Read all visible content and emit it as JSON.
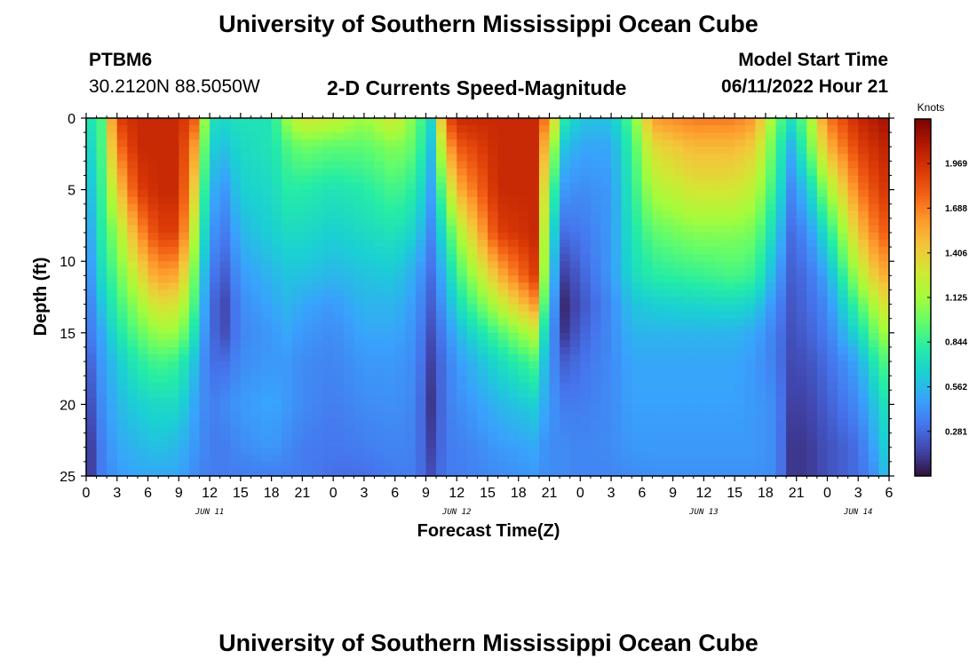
{
  "header": {
    "title": "University of Southern Mississippi Ocean Cube",
    "station": "PTBM6",
    "coords": "30.2120N  88.5050W",
    "subtitle": "2-D Currents Speed-Magnitude",
    "model_label": "Model Start Time",
    "model_time": "06/11/2022 Hour 21"
  },
  "footer": {
    "title": "University of Southern Mississippi Ocean Cube"
  },
  "chart_data": {
    "type": "heatmap",
    "title": "2-D Currents Speed-Magnitude",
    "xlabel": "Forecast Time(Z)",
    "ylabel": "Depth (ft)",
    "x_range_hours": [
      0,
      78
    ],
    "x_tick_labels": [
      "0",
      "3",
      "6",
      "9",
      "12",
      "15",
      "18",
      "21",
      "0",
      "3",
      "6",
      "9",
      "12",
      "15",
      "18",
      "21",
      "0",
      "3",
      "6",
      "9",
      "12",
      "15",
      "18",
      "21",
      "0",
      "3",
      "6"
    ],
    "date_labels": [
      {
        "label": "JUN 11",
        "at_hour": 12
      },
      {
        "label": "JUN 12",
        "at_hour": 36
      },
      {
        "label": "JUN 13",
        "at_hour": 60
      },
      {
        "label": "JUN 14",
        "at_hour": 75
      }
    ],
    "y_range": [
      0,
      25
    ],
    "y_ticks": [
      "0",
      "5",
      "10",
      "15",
      "20",
      "25"
    ],
    "colorbar": {
      "unit": "Knots",
      "min": 0,
      "max": 2.25,
      "ticks": [
        "1.969",
        "1.688",
        "1.406",
        "1.125",
        "0.844",
        "0.562",
        "0.281"
      ]
    },
    "colors": [
      "#30123b",
      "#4145ab",
      "#4675ed",
      "#39a2fc",
      "#1bcfd4",
      "#24eca6",
      "#61fc6c",
      "#a4fc3b",
      "#d1e834",
      "#f3c63a",
      "#fe9b2d",
      "#f36315",
      "#d93806",
      "#b11901",
      "#7a0402"
    ],
    "depth_rows": [
      0,
      2,
      5,
      8,
      11,
      13,
      15,
      17,
      20,
      23,
      25
    ],
    "time_knots": [
      {
        "t": 0,
        "v": [
          0.7,
          0.6,
          0.5,
          0.4,
          0.35,
          0.3,
          0.3,
          0.2,
          0.12,
          0.05,
          0.05
        ]
      },
      {
        "t": 1.5,
        "v": [
          0.9,
          0.9,
          0.85,
          0.8,
          0.7,
          0.6,
          0.5,
          0.45,
          0.4,
          0.35,
          0.35
        ]
      },
      {
        "t": 3,
        "v": [
          1.9,
          1.7,
          1.4,
          1.1,
          0.95,
          0.85,
          0.75,
          0.62,
          0.55,
          0.5,
          0.45
        ]
      },
      {
        "t": 5,
        "v": [
          2.0,
          2.0,
          1.9,
          1.6,
          1.3,
          1.1,
          0.95,
          0.8,
          0.65,
          0.55,
          0.5
        ]
      },
      {
        "t": 7,
        "v": [
          2.0,
          2.0,
          2.0,
          1.9,
          1.6,
          1.35,
          1.1,
          0.9,
          0.7,
          0.6,
          0.5
        ]
      },
      {
        "t": 9,
        "v": [
          2.0,
          2.0,
          2.0,
          1.9,
          1.55,
          1.3,
          1.1,
          0.85,
          0.7,
          0.55,
          0.5
        ]
      },
      {
        "t": 10.5,
        "v": [
          1.8,
          1.6,
          1.4,
          1.2,
          1.0,
          0.9,
          0.75,
          0.6,
          0.5,
          0.45,
          0.4
        ]
      },
      {
        "t": 12,
        "v": [
          0.75,
          0.65,
          0.55,
          0.45,
          0.35,
          0.3,
          0.3,
          0.3,
          0.35,
          0.35,
          0.35
        ]
      },
      {
        "t": 13.5,
        "v": [
          0.7,
          0.6,
          0.45,
          0.35,
          0.25,
          0.18,
          0.2,
          0.3,
          0.4,
          0.35,
          0.35
        ]
      },
      {
        "t": 15,
        "v": [
          0.75,
          0.7,
          0.65,
          0.55,
          0.45,
          0.4,
          0.38,
          0.4,
          0.45,
          0.4,
          0.35
        ]
      },
      {
        "t": 18,
        "v": [
          0.75,
          0.75,
          0.7,
          0.65,
          0.55,
          0.5,
          0.45,
          0.45,
          0.5,
          0.45,
          0.35
        ]
      },
      {
        "t": 19.5,
        "v": [
          1.1,
          0.9,
          0.8,
          0.7,
          0.6,
          0.55,
          0.5,
          0.45,
          0.45,
          0.4,
          0.35
        ]
      },
      {
        "t": 21,
        "v": [
          1.3,
          1.0,
          0.8,
          0.7,
          0.6,
          0.5,
          0.45,
          0.4,
          0.4,
          0.35,
          0.35
        ]
      },
      {
        "t": 24,
        "v": [
          1.25,
          0.95,
          0.75,
          0.65,
          0.55,
          0.45,
          0.4,
          0.38,
          0.35,
          0.33,
          0.3
        ]
      },
      {
        "t": 27,
        "v": [
          1.1,
          0.95,
          0.8,
          0.7,
          0.6,
          0.55,
          0.5,
          0.45,
          0.4,
          0.35,
          0.3
        ]
      },
      {
        "t": 30,
        "v": [
          1.3,
          1.05,
          0.9,
          0.75,
          0.62,
          0.55,
          0.5,
          0.45,
          0.42,
          0.38,
          0.35
        ]
      },
      {
        "t": 32,
        "v": [
          1.0,
          0.95,
          0.8,
          0.65,
          0.5,
          0.45,
          0.42,
          0.4,
          0.38,
          0.36,
          0.35
        ]
      },
      {
        "t": 33.5,
        "v": [
          0.7,
          0.6,
          0.5,
          0.4,
          0.3,
          0.25,
          0.2,
          0.15,
          0.12,
          0.15,
          0.2
        ]
      },
      {
        "t": 35,
        "v": [
          1.8,
          1.5,
          1.1,
          0.8,
          0.6,
          0.5,
          0.4,
          0.35,
          0.35,
          0.35,
          0.35
        ]
      },
      {
        "t": 36,
        "v": [
          2.0,
          1.8,
          1.5,
          1.1,
          0.85,
          0.7,
          0.55,
          0.45,
          0.4,
          0.35,
          0.35
        ]
      },
      {
        "t": 40,
        "v": [
          2.0,
          2.0,
          2.0,
          1.9,
          1.5,
          1.2,
          0.9,
          0.7,
          0.55,
          0.45,
          0.4
        ]
      },
      {
        "t": 43.5,
        "v": [
          2.0,
          2.0,
          2.0,
          2.0,
          1.9,
          1.6,
          1.2,
          0.9,
          0.65,
          0.5,
          0.45
        ]
      },
      {
        "t": 45,
        "v": [
          1.6,
          1.3,
          1.0,
          0.8,
          0.7,
          0.6,
          0.5,
          0.45,
          0.45,
          0.4,
          0.4
        ]
      },
      {
        "t": 46.5,
        "v": [
          0.8,
          0.6,
          0.45,
          0.3,
          0.15,
          0.08,
          0.12,
          0.25,
          0.35,
          0.4,
          0.4
        ]
      },
      {
        "t": 48,
        "v": [
          0.6,
          0.5,
          0.4,
          0.33,
          0.25,
          0.2,
          0.25,
          0.3,
          0.35,
          0.38,
          0.38
        ]
      },
      {
        "t": 51,
        "v": [
          0.6,
          0.5,
          0.45,
          0.45,
          0.45,
          0.4,
          0.4,
          0.4,
          0.4,
          0.4,
          0.38
        ]
      },
      {
        "t": 53,
        "v": [
          0.95,
          0.85,
          0.8,
          0.75,
          0.7,
          0.6,
          0.55,
          0.5,
          0.48,
          0.45,
          0.4
        ]
      },
      {
        "t": 55,
        "v": [
          1.6,
          1.35,
          1.15,
          0.95,
          0.8,
          0.65,
          0.55,
          0.5,
          0.48,
          0.45,
          0.42
        ]
      },
      {
        "t": 59,
        "v": [
          1.7,
          1.5,
          1.3,
          1.05,
          0.85,
          0.68,
          0.55,
          0.5,
          0.48,
          0.45,
          0.42
        ]
      },
      {
        "t": 63,
        "v": [
          1.7,
          1.5,
          1.3,
          1.05,
          0.9,
          0.7,
          0.55,
          0.5,
          0.48,
          0.45,
          0.42
        ]
      },
      {
        "t": 65,
        "v": [
          1.6,
          1.4,
          1.2,
          1.0,
          0.85,
          0.65,
          0.5,
          0.45,
          0.45,
          0.45,
          0.42
        ]
      },
      {
        "t": 67,
        "v": [
          1.0,
          0.9,
          0.8,
          0.65,
          0.5,
          0.4,
          0.35,
          0.35,
          0.4,
          0.4,
          0.4
        ]
      },
      {
        "t": 68.5,
        "v": [
          0.75,
          0.55,
          0.4,
          0.3,
          0.25,
          0.22,
          0.2,
          0.18,
          0.15,
          0.12,
          0.12
        ]
      },
      {
        "t": 70,
        "v": [
          1.0,
          0.9,
          0.6,
          0.4,
          0.3,
          0.28,
          0.25,
          0.2,
          0.15,
          0.12,
          0.12
        ]
      },
      {
        "t": 72,
        "v": [
          1.7,
          1.5,
          1.1,
          0.75,
          0.5,
          0.4,
          0.35,
          0.3,
          0.25,
          0.2,
          0.2
        ]
      },
      {
        "t": 75,
        "v": [
          2.0,
          1.9,
          1.7,
          1.45,
          1.15,
          0.9,
          0.7,
          0.5,
          0.4,
          0.3,
          0.3
        ]
      },
      {
        "t": 77,
        "v": [
          2.1,
          2.0,
          1.9,
          1.75,
          1.5,
          1.25,
          1.05,
          0.85,
          0.65,
          0.55,
          0.45
        ]
      },
      {
        "t": 78,
        "v": [
          2.15,
          2.05,
          1.95,
          1.8,
          1.55,
          1.35,
          1.15,
          0.95,
          0.8,
          0.7,
          0.65
        ]
      }
    ]
  }
}
